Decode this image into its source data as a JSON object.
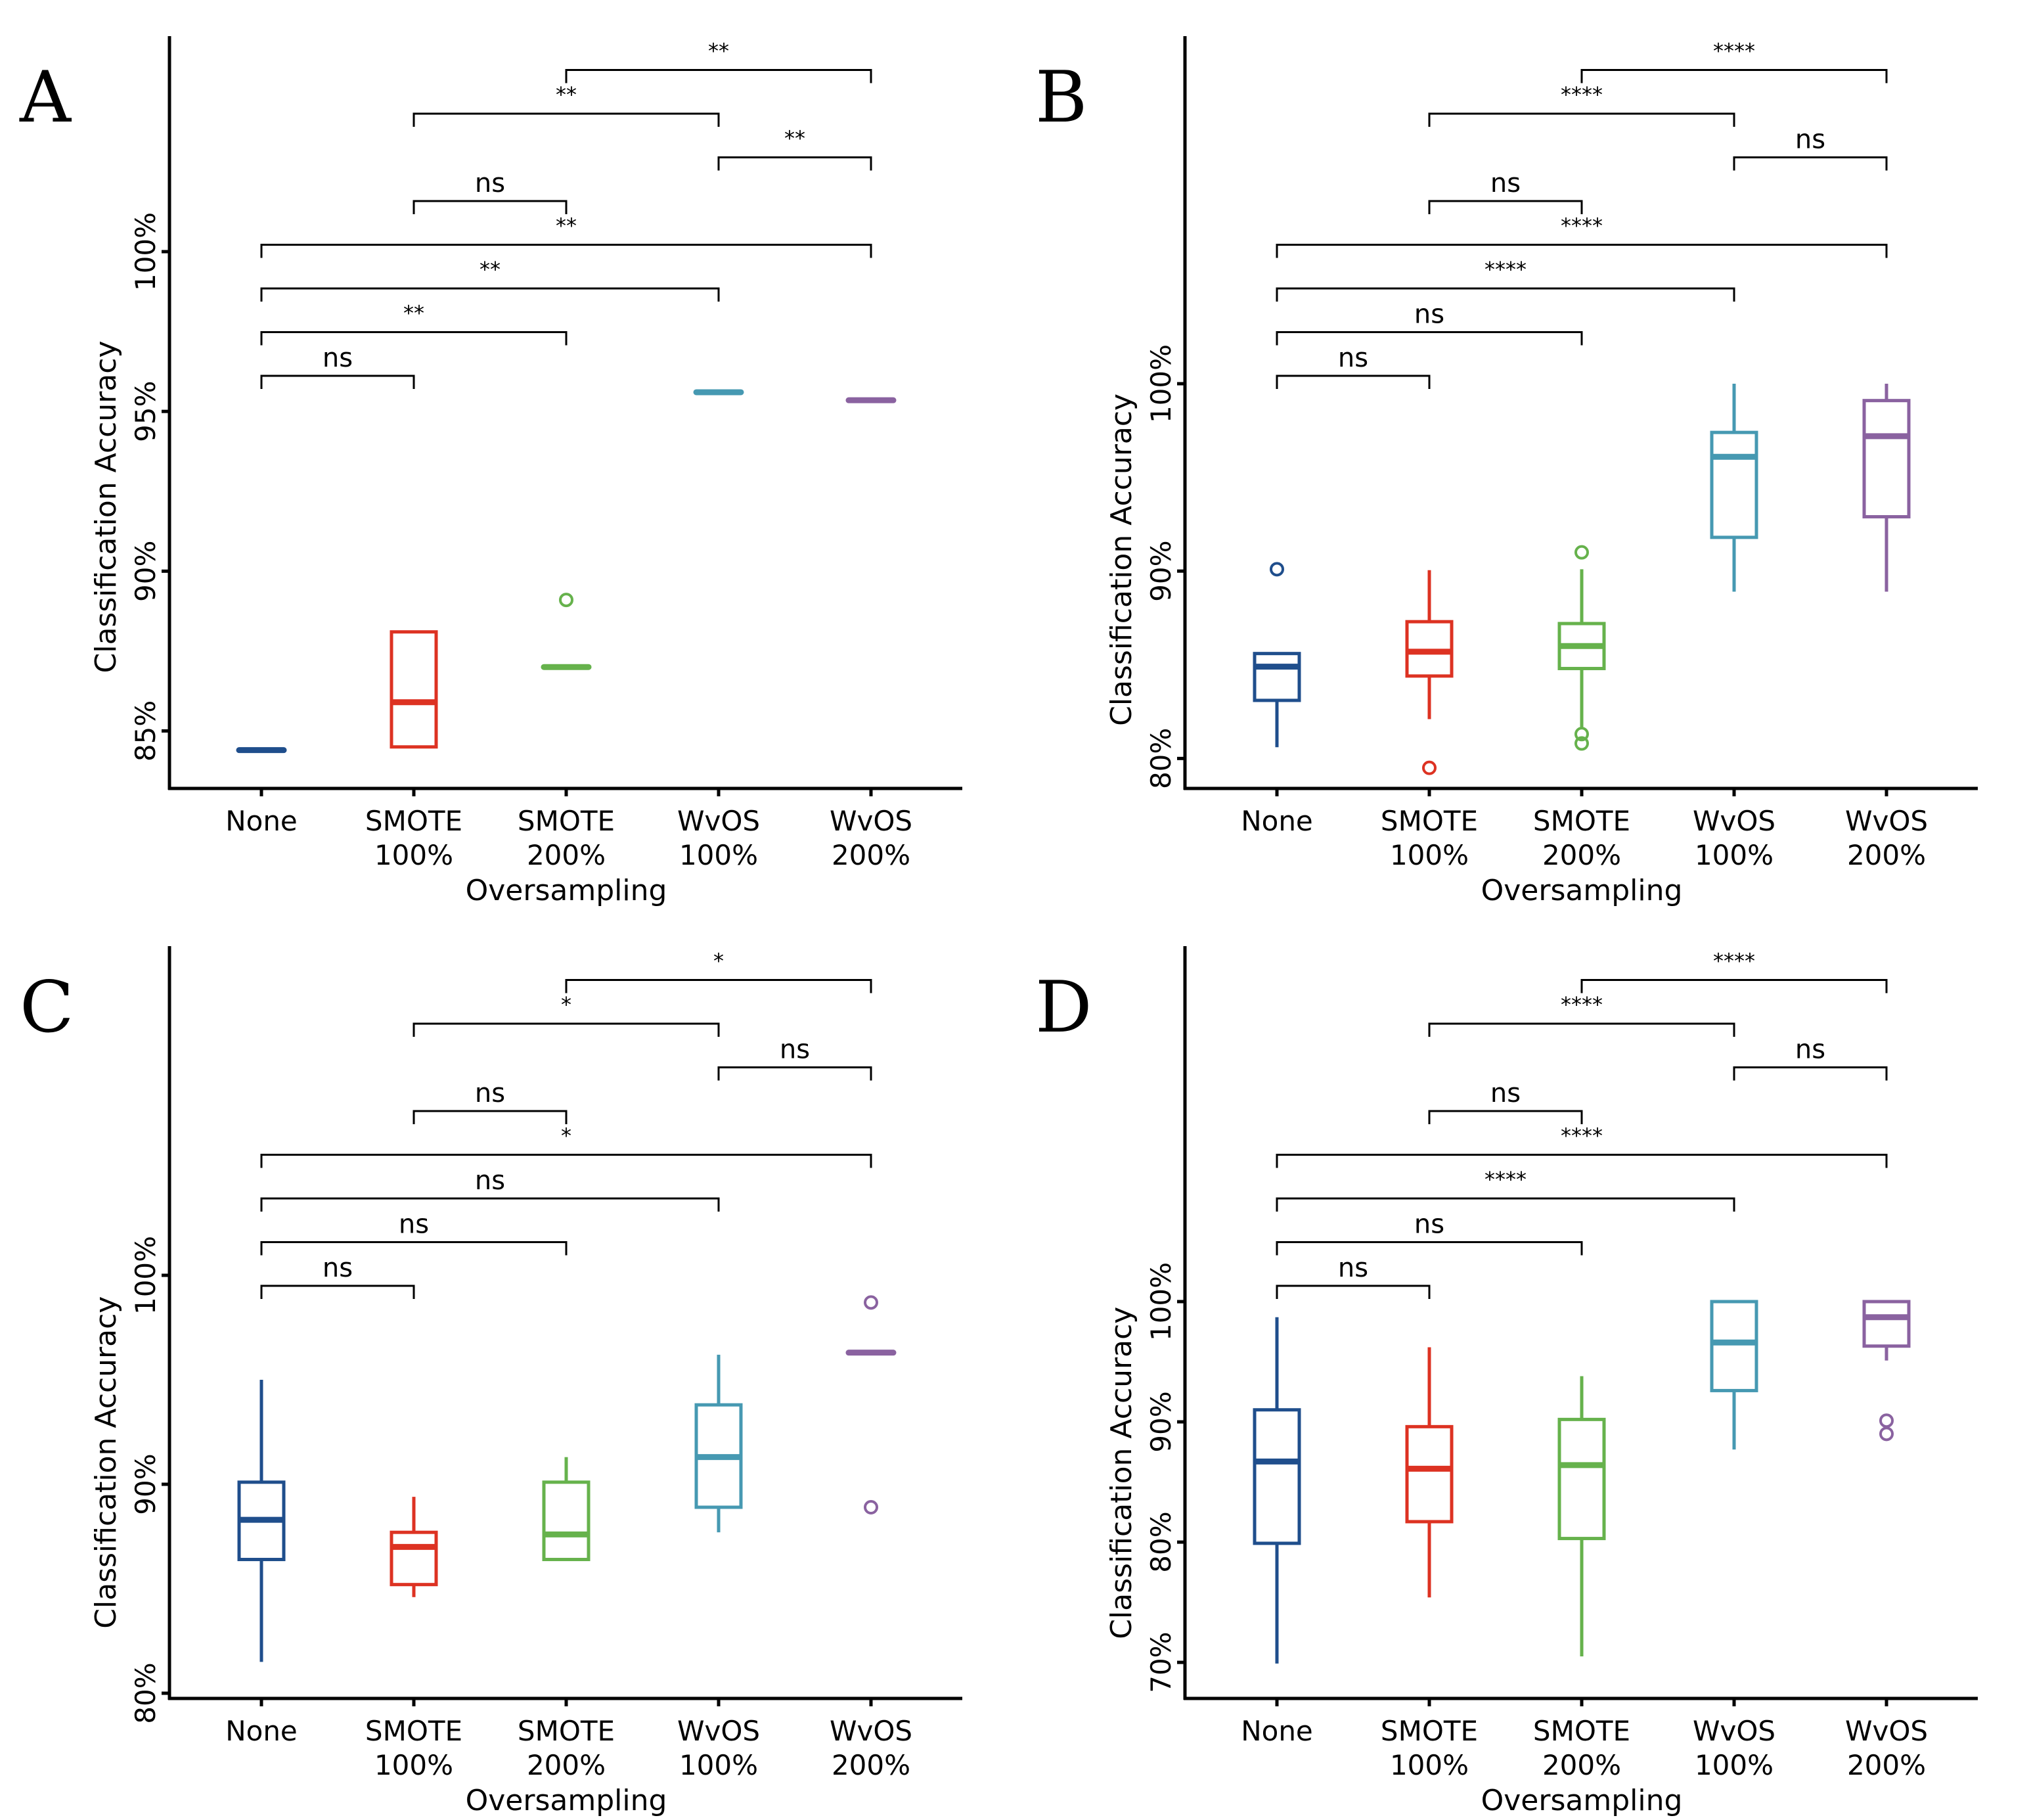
{
  "figure": {
    "panels_layout": "2x2 grid",
    "panel_letters": [
      "A",
      "B",
      "C",
      "D"
    ]
  },
  "colors": {
    "None": "#1F4E8C",
    "SMOTE 100%": "#DD3222",
    "SMOTE 200%": "#66B24C",
    "WvOS 100%": "#4699B2",
    "WvOS 200%": "#8A62A0",
    "axis": "#000000"
  },
  "chart_data": [
    {
      "type": "boxplot",
      "panel": "A",
      "xlabel": "Oversampling",
      "ylabel": "Classification Accuracy",
      "categories": [
        [
          "None"
        ],
        [
          "SMOTE",
          "100%"
        ],
        [
          "SMOTE",
          "200%"
        ],
        [
          "WvOS",
          "100%"
        ],
        [
          "WvOS",
          "200%"
        ]
      ],
      "yticks": [
        85,
        90,
        95,
        100
      ],
      "ytick_labels": [
        "85%",
        "90%",
        "95%",
        "100%"
      ],
      "ylim": [
        83.2,
        100
      ],
      "boxes": [
        {
          "category": "None",
          "min": 84.4,
          "q1": 84.4,
          "median": 84.4,
          "q3": 84.4,
          "max": 84.4,
          "outliers": []
        },
        {
          "category": "SMOTE 100%",
          "min": 84.5,
          "q1": 84.5,
          "median": 85.9,
          "q3": 88.1,
          "max": 88.1,
          "outliers": []
        },
        {
          "category": "SMOTE 200%",
          "min": 87.0,
          "q1": 87.0,
          "median": 87.0,
          "q3": 87.0,
          "max": 87.0,
          "outliers": [
            89.1
          ]
        },
        {
          "category": "WvOS 100%",
          "min": 95.6,
          "q1": 95.6,
          "median": 95.6,
          "q3": 95.6,
          "max": 95.6,
          "outliers": []
        },
        {
          "category": "WvOS 200%",
          "min": 95.35,
          "q1": 95.35,
          "median": 95.35,
          "q3": 95.35,
          "max": 95.35,
          "outliers": []
        }
      ],
      "comparisons": [
        {
          "from": 0,
          "to": 1,
          "label": "ns"
        },
        {
          "from": 0,
          "to": 2,
          "label": "**"
        },
        {
          "from": 0,
          "to": 3,
          "label": "**"
        },
        {
          "from": 0,
          "to": 4,
          "label": "**"
        },
        {
          "from": 1,
          "to": 2,
          "label": "ns"
        },
        {
          "from": 3,
          "to": 4,
          "label": "**"
        },
        {
          "from": 1,
          "to": 3,
          "label": "**"
        },
        {
          "from": 2,
          "to": 4,
          "label": "**"
        }
      ]
    },
    {
      "type": "boxplot",
      "panel": "B",
      "xlabel": "Oversampling",
      "ylabel": "Classification Accuracy",
      "categories": [
        [
          "None"
        ],
        [
          "SMOTE",
          "100%"
        ],
        [
          "SMOTE",
          "200%"
        ],
        [
          "WvOS",
          "100%"
        ],
        [
          "WvOS",
          "200%"
        ]
      ],
      "yticks": [
        80,
        90,
        100
      ],
      "ytick_labels": [
        "80%",
        "90%",
        "100%"
      ],
      "ylim": [
        78.4,
        100
      ],
      "boxes": [
        {
          "category": "None",
          "min": 80.6,
          "q1": 83.1,
          "median": 84.9,
          "q3": 85.6,
          "max": 85.6,
          "outliers": [
            90.1
          ]
        },
        {
          "category": "SMOTE 100%",
          "min": 82.1,
          "q1": 84.4,
          "median": 85.7,
          "q3": 87.3,
          "max": 90.05,
          "outliers": [
            79.5
          ]
        },
        {
          "category": "SMOTE 200%",
          "min": 81.6,
          "q1": 84.8,
          "median": 86.0,
          "q3": 87.2,
          "max": 90.1,
          "outliers": [
            91.0,
            81.3,
            80.8
          ]
        },
        {
          "category": "WvOS 100%",
          "min": 88.9,
          "q1": 91.8,
          "median": 96.1,
          "q3": 97.4,
          "max": 100,
          "outliers": []
        },
        {
          "category": "WvOS 200%",
          "min": 88.9,
          "q1": 92.9,
          "median": 97.2,
          "q3": 99.1,
          "max": 100,
          "outliers": []
        }
      ],
      "comparisons": [
        {
          "from": 0,
          "to": 1,
          "label": "ns"
        },
        {
          "from": 0,
          "to": 2,
          "label": "ns"
        },
        {
          "from": 0,
          "to": 3,
          "label": "****"
        },
        {
          "from": 0,
          "to": 4,
          "label": "****"
        },
        {
          "from": 1,
          "to": 2,
          "label": "ns"
        },
        {
          "from": 3,
          "to": 4,
          "label": "ns"
        },
        {
          "from": 1,
          "to": 3,
          "label": "****"
        },
        {
          "from": 2,
          "to": 4,
          "label": "****"
        }
      ]
    },
    {
      "type": "boxplot",
      "panel": "C",
      "xlabel": "Oversampling",
      "ylabel": "Classification Accuracy",
      "categories": [
        [
          "None"
        ],
        [
          "SMOTE",
          "100%"
        ],
        [
          "SMOTE",
          "200%"
        ],
        [
          "WvOS",
          "100%"
        ],
        [
          "WvOS",
          "200%"
        ]
      ],
      "yticks": [
        80,
        90,
        100
      ],
      "ytick_labels": [
        "80%",
        "90%",
        "100%"
      ],
      "ylim": [
        79.75,
        100
      ],
      "boxes": [
        {
          "category": "None",
          "min": 81.5,
          "q1": 86.4,
          "median": 88.3,
          "q3": 90.1,
          "max": 95.0,
          "outliers": []
        },
        {
          "category": "SMOTE 100%",
          "min": 84.6,
          "q1": 85.2,
          "median": 87.0,
          "q3": 87.7,
          "max": 89.4,
          "outliers": []
        },
        {
          "category": "SMOTE 200%",
          "min": 86.4,
          "q1": 86.4,
          "median": 87.6,
          "q3": 90.1,
          "max": 91.3,
          "outliers": []
        },
        {
          "category": "WvOS 100%",
          "min": 87.7,
          "q1": 88.9,
          "median": 91.3,
          "q3": 93.8,
          "max": 96.2,
          "outliers": []
        },
        {
          "category": "WvOS 200%",
          "min": 96.3,
          "q1": 96.3,
          "median": 96.3,
          "q3": 96.3,
          "max": 96.3,
          "outliers": [
            98.7,
            88.9
          ]
        }
      ],
      "comparisons": [
        {
          "from": 0,
          "to": 1,
          "label": "ns"
        },
        {
          "from": 0,
          "to": 2,
          "label": "ns"
        },
        {
          "from": 0,
          "to": 3,
          "label": "ns"
        },
        {
          "from": 0,
          "to": 4,
          "label": "*"
        },
        {
          "from": 1,
          "to": 2,
          "label": "ns"
        },
        {
          "from": 3,
          "to": 4,
          "label": "ns"
        },
        {
          "from": 1,
          "to": 3,
          "label": "*"
        },
        {
          "from": 2,
          "to": 4,
          "label": "*"
        }
      ]
    },
    {
      "type": "boxplot",
      "panel": "D",
      "xlabel": "Oversampling",
      "ylabel": "Classification Accuracy",
      "categories": [
        [
          "None"
        ],
        [
          "SMOTE",
          "100%"
        ],
        [
          "SMOTE",
          "200%"
        ],
        [
          "WvOS",
          "100%"
        ],
        [
          "WvOS",
          "200%"
        ]
      ],
      "yticks": [
        70,
        80,
        90,
        100
      ],
      "ytick_labels": [
        "70%",
        "80%",
        "90%",
        "100%"
      ],
      "ylim": [
        67,
        100
      ],
      "boxes": [
        {
          "category": "None",
          "min": 69.9,
          "q1": 79.9,
          "median": 86.7,
          "q3": 91.0,
          "max": 98.7,
          "outliers": []
        },
        {
          "category": "SMOTE 100%",
          "min": 75.4,
          "q1": 81.7,
          "median": 86.1,
          "q3": 89.6,
          "max": 96.2,
          "outliers": []
        },
        {
          "category": "SMOTE 200%",
          "min": 70.5,
          "q1": 80.3,
          "median": 86.4,
          "q3": 90.2,
          "max": 93.8,
          "outliers": []
        },
        {
          "category": "WvOS 100%",
          "min": 87.7,
          "q1": 92.6,
          "median": 96.6,
          "q3": 100,
          "max": 100,
          "outliers": []
        },
        {
          "category": "WvOS 200%",
          "min": 95.1,
          "q1": 96.3,
          "median": 98.7,
          "q3": 100,
          "max": 100,
          "outliers": [
            90.1,
            89.0
          ]
        }
      ],
      "comparisons": [
        {
          "from": 0,
          "to": 1,
          "label": "ns"
        },
        {
          "from": 0,
          "to": 2,
          "label": "ns"
        },
        {
          "from": 0,
          "to": 3,
          "label": "****"
        },
        {
          "from": 0,
          "to": 4,
          "label": "****"
        },
        {
          "from": 1,
          "to": 2,
          "label": "ns"
        },
        {
          "from": 3,
          "to": 4,
          "label": "ns"
        },
        {
          "from": 1,
          "to": 3,
          "label": "****"
        },
        {
          "from": 2,
          "to": 4,
          "label": "****"
        }
      ]
    }
  ]
}
